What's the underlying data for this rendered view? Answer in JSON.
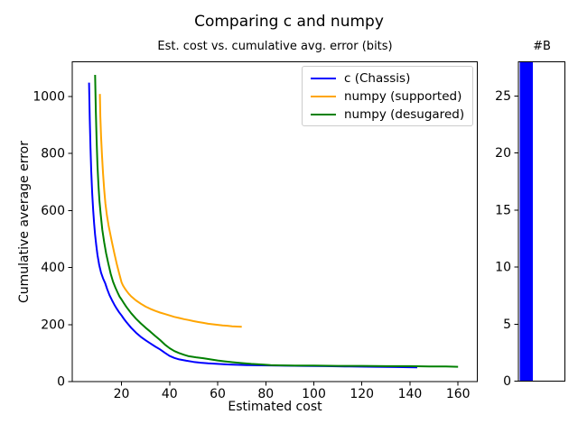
{
  "figure": {
    "title": "Comparing c and numpy",
    "background_color": "#ffffff"
  },
  "chart_data": [
    {
      "type": "line",
      "title": "Est. cost vs. cumulative avg. error (bits)",
      "xlabel": "Estimated cost",
      "ylabel": "Cumulative average error",
      "xlim": [
        -0.5,
        168
      ],
      "ylim": [
        0,
        1122
      ],
      "xticks": [
        20,
        40,
        60,
        80,
        100,
        120,
        140,
        160
      ],
      "yticks": [
        0,
        200,
        400,
        600,
        800,
        1000
      ],
      "grid": false,
      "legend_position": "upper right",
      "series": [
        {
          "name": "c (Chassis)",
          "color": "#0000ff",
          "points": [
            [
              6.5,
              1049
            ],
            [
              6.8,
              920
            ],
            [
              7.1,
              820
            ],
            [
              7.4,
              740
            ],
            [
              7.8,
              660
            ],
            [
              8.2,
              600
            ],
            [
              8.6,
              555
            ],
            [
              9,
              515
            ],
            [
              9.5,
              478
            ],
            [
              10,
              445
            ],
            [
              10.7,
              410
            ],
            [
              11.5,
              382
            ],
            [
              12.3,
              362
            ],
            [
              13.2,
              345
            ],
            [
              14,
              325
            ],
            [
              15,
              303
            ],
            [
              16,
              286
            ],
            [
              17,
              270
            ],
            [
              18,
              256
            ],
            [
              19,
              243
            ],
            [
              20,
              232
            ],
            [
              21,
              220
            ],
            [
              22,
              209
            ],
            [
              24,
              189
            ],
            [
              26,
              172
            ],
            [
              28,
              157
            ],
            [
              30,
              145
            ],
            [
              32,
              134
            ],
            [
              34,
              123
            ],
            [
              36,
              113
            ],
            [
              38,
              101
            ],
            [
              40,
              90
            ],
            [
              42,
              83
            ],
            [
              44,
              78
            ],
            [
              47,
              73
            ],
            [
              50,
              69
            ],
            [
              53,
              66
            ],
            [
              56,
              64
            ],
            [
              60,
              62
            ],
            [
              64,
              60
            ],
            [
              68,
              59
            ],
            [
              72,
              58
            ],
            [
              78,
              57
            ],
            [
              85,
              56
            ],
            [
              95,
              55
            ],
            [
              105,
              54
            ],
            [
              115,
              53
            ],
            [
              125,
              52
            ],
            [
              134,
              51
            ],
            [
              143,
              50
            ]
          ]
        },
        {
          "name": "numpy (supported)",
          "color": "#ffa500",
          "points": [
            [
              11,
              1009
            ],
            [
              11.2,
              930
            ],
            [
              11.5,
              860
            ],
            [
              11.9,
              790
            ],
            [
              12.3,
              730
            ],
            [
              12.8,
              672
            ],
            [
              13.3,
              625
            ],
            [
              13.9,
              585
            ],
            [
              14.6,
              548
            ],
            [
              15.4,
              515
            ],
            [
              16,
              490
            ],
            [
              17,
              450
            ],
            [
              18,
              414
            ],
            [
              19,
              380
            ],
            [
              20,
              348
            ],
            [
              20.6,
              337
            ],
            [
              21.3,
              328
            ],
            [
              22,
              319
            ],
            [
              23,
              308
            ],
            [
              24,
              299
            ],
            [
              26,
              285
            ],
            [
              28,
              273
            ],
            [
              30,
              263
            ],
            [
              32,
              255
            ],
            [
              34,
              248
            ],
            [
              36,
              242
            ],
            [
              38,
              237
            ],
            [
              40,
              232
            ],
            [
              42,
              227
            ],
            [
              44,
              223
            ],
            [
              46,
              219
            ],
            [
              48,
              216
            ],
            [
              50,
              212
            ],
            [
              52,
              209
            ],
            [
              54,
              206
            ],
            [
              56,
              203
            ],
            [
              58,
              201
            ],
            [
              60,
              199
            ],
            [
              62,
              197
            ],
            [
              64,
              196
            ],
            [
              66,
              194
            ],
            [
              68,
              193
            ],
            [
              70,
              192
            ]
          ]
        },
        {
          "name": "numpy (desugared)",
          "color": "#008000",
          "points": [
            [
              9,
              1076
            ],
            [
              9.3,
              950
            ],
            [
              9.6,
              855
            ],
            [
              10,
              760
            ],
            [
              10.4,
              690
            ],
            [
              10.8,
              635
            ],
            [
              11.3,
              590
            ],
            [
              12,
              532
            ],
            [
              12.8,
              488
            ],
            [
              13.6,
              450
            ],
            [
              14.5,
              415
            ],
            [
              15.5,
              378
            ],
            [
              16.5,
              350
            ],
            [
              17.5,
              329
            ],
            [
              18.5,
              310
            ],
            [
              19.2,
              298
            ],
            [
              20,
              288
            ],
            [
              21,
              275
            ],
            [
              22,
              262
            ],
            [
              24,
              240
            ],
            [
              26,
              221
            ],
            [
              28,
              204
            ],
            [
              30,
              189
            ],
            [
              32,
              175
            ],
            [
              34,
              160
            ],
            [
              36,
              146
            ],
            [
              38,
              130
            ],
            [
              40,
              117
            ],
            [
              42,
              107
            ],
            [
              44,
              100
            ],
            [
              46,
              94
            ],
            [
              48,
              89
            ],
            [
              51,
              85
            ],
            [
              54,
              82
            ],
            [
              57,
              78
            ],
            [
              60,
              74
            ],
            [
              63,
              71
            ],
            [
              66,
              68
            ],
            [
              70,
              65
            ],
            [
              74,
              62
            ],
            [
              78,
              60
            ],
            [
              82,
              58
            ],
            [
              86,
              57
            ],
            [
              92,
              56
            ],
            [
              100,
              56
            ],
            [
              110,
              55
            ],
            [
              120,
              55
            ],
            [
              130,
              54
            ],
            [
              140,
              54
            ],
            [
              148,
              53
            ],
            [
              155,
              53
            ],
            [
              160,
              52
            ]
          ]
        }
      ]
    },
    {
      "type": "bar",
      "title": "#B",
      "values": [
        28
      ],
      "bar_color": "#0000ff",
      "ylim": [
        0,
        28
      ],
      "yticks": [
        0,
        5,
        10,
        15,
        20,
        25
      ],
      "grid": false
    }
  ]
}
